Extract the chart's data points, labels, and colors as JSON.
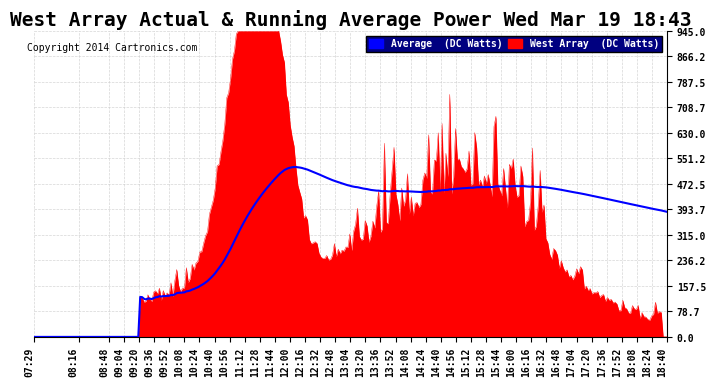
{
  "title": "West Array Actual & Running Average Power Wed Mar 19 18:43",
  "copyright": "Copyright 2014 Cartronics.com",
  "legend_avg": "Average  (DC Watts)",
  "legend_west": "West Array  (DC Watts)",
  "ymin": 0.0,
  "ymax": 945.0,
  "yticks": [
    0.0,
    78.7,
    157.5,
    236.2,
    315.0,
    393.7,
    472.5,
    551.2,
    630.0,
    708.7,
    787.5,
    866.2,
    945.0
  ],
  "ytick_labels": [
    "0.0",
    "78.7",
    "157.5",
    "236.2",
    "315.0",
    "393.7",
    "472.5",
    "551.2",
    "630.0",
    "708.7",
    "787.5",
    "866.2",
    "945.0"
  ],
  "background_color": "#ffffff",
  "grid_color": "#cccccc",
  "red_color": "#ff0000",
  "blue_color": "#0000ff",
  "title_fontsize": 14,
  "tick_fontsize": 7,
  "xlabel_rotation": 90
}
